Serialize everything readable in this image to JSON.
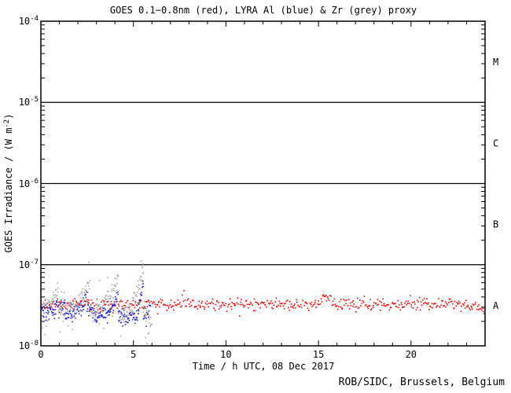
{
  "window": {
    "background": "#ffffff"
  },
  "chart": {
    "title": "GOES 0.1−0.8nm (red), LYRA Al (blue) & Zr (grey) proxy",
    "credit": "ROB/SIDC, Brussels, Belgium",
    "axes": {
      "x": {
        "title": "Time / h UTC, 08 Dec 2017",
        "min": 0,
        "max": 24,
        "major_tick_step": 5,
        "minor_tick_step": 1,
        "tick_labels": [
          "0",
          "5",
          "10",
          "15",
          "20"
        ]
      },
      "y": {
        "title_pre": "GOES Irradiance / (W m",
        "title_sup": "-2",
        "title_post": ")",
        "min_exp": -8,
        "max_exp": -4,
        "tick_labels": [
          {
            "base": "10",
            "exp": "-4"
          },
          {
            "base": "10",
            "exp": "-5"
          },
          {
            "base": "10",
            "exp": "-6"
          },
          {
            "base": "10",
            "exp": "-7"
          },
          {
            "base": "10",
            "exp": "-8"
          }
        ]
      }
    },
    "flare_classes": [
      {
        "label": "M",
        "mid_exp": -4.5
      },
      {
        "label": "C",
        "mid_exp": -5.5
      },
      {
        "label": "B",
        "mid_exp": -6.5
      },
      {
        "label": "A",
        "mid_exp": -7.5
      }
    ],
    "boundary_lines_exp": [
      -5,
      -6,
      -7
    ],
    "colors": {
      "goes_red": "#ff0000",
      "lyra_al_blue": "#2222cc",
      "lyra_zr_grey": "#a8a8a8",
      "frame": "#000000"
    }
  },
  "chart_data": {
    "type": "scatter",
    "title": "GOES 0.1−0.8nm (red), LYRA Al (blue) & Zr (grey) proxy",
    "xlabel": "Time / h UTC, 08 Dec 2017",
    "ylabel": "GOES Irradiance / (W m^-2)",
    "x_range_hours": [
      0,
      24
    ],
    "y_log10_range": [
      -8,
      -4
    ],
    "grid": "off",
    "legend": "encoded in title by colour",
    "series": [
      {
        "name": "GOES 0.1-0.8nm",
        "color": "#ff0000",
        "seed": 11,
        "step_h": 0.045,
        "sigma_dex": 0.035,
        "outlier_prob": 0.05,
        "outlier_mag_dex": 0.08,
        "segments_t0_t1_log0_log1": [
          [
            0.0,
            0.6,
            -7.51,
            -7.49
          ],
          [
            0.6,
            1.9,
            -7.48,
            -7.48
          ],
          [
            1.9,
            2.6,
            -7.45,
            -7.47
          ],
          [
            2.6,
            6.3,
            -7.48,
            -7.48
          ],
          [
            6.3,
            15.05,
            -7.49,
            -7.49
          ],
          [
            15.05,
            15.45,
            -7.47,
            -7.36
          ],
          [
            15.45,
            15.95,
            -7.4,
            -7.49
          ],
          [
            15.95,
            23.0,
            -7.49,
            -7.49
          ],
          [
            23.0,
            24.0,
            -7.5,
            -7.55
          ]
        ],
        "extra_points_t_log": []
      },
      {
        "name": "LYRA Al proxy",
        "color": "#2222cc",
        "seed": 22,
        "step_h": 0.022,
        "sigma_dex": 0.045,
        "outlier_prob": 0.05,
        "outlier_mag_dex": 0.1,
        "segments_t0_t1_log0_log1": [
          [
            0.0,
            0.35,
            -7.53,
            -7.53
          ],
          [
            0.35,
            0.8,
            -7.57,
            -7.56
          ],
          [
            0.8,
            1.3,
            -7.52,
            -7.53
          ],
          [
            1.3,
            1.8,
            -7.62,
            -7.6
          ],
          [
            1.8,
            2.3,
            -7.55,
            -7.54
          ],
          [
            2.3,
            2.5,
            -7.48,
            -7.36
          ],
          [
            2.5,
            2.95,
            -7.55,
            -7.6
          ],
          [
            2.95,
            3.6,
            -7.65,
            -7.62
          ],
          [
            3.6,
            3.95,
            -7.56,
            -7.55
          ],
          [
            3.95,
            4.18,
            -7.5,
            -7.36
          ],
          [
            4.18,
            4.55,
            -7.57,
            -7.6
          ],
          [
            4.55,
            5.3,
            -7.66,
            -7.62
          ],
          [
            5.3,
            5.55,
            -7.5,
            -7.22
          ],
          [
            5.55,
            5.92,
            -7.62,
            -7.55
          ]
        ],
        "extra_points_t_log": []
      },
      {
        "name": "LYRA Zr proxy",
        "color": "#a8a8a8",
        "seed": 33,
        "step_h": 0.022,
        "sigma_dex": 0.05,
        "outlier_prob": 0.07,
        "outlier_mag_dex": 0.3,
        "segments_t0_t1_log0_log1": [
          [
            0.0,
            0.5,
            -7.53,
            -7.51
          ],
          [
            0.5,
            0.95,
            -7.48,
            -7.27
          ],
          [
            0.95,
            1.25,
            -7.58,
            -7.63
          ],
          [
            1.25,
            2.0,
            -7.53,
            -7.51
          ],
          [
            2.0,
            2.65,
            -7.5,
            -7.22
          ],
          [
            2.65,
            3.0,
            -7.58,
            -7.62
          ],
          [
            3.0,
            3.35,
            -7.53,
            -7.52
          ],
          [
            3.35,
            4.2,
            -7.52,
            -7.17
          ],
          [
            4.2,
            4.55,
            -7.62,
            -7.66
          ],
          [
            4.55,
            4.95,
            -7.56,
            -7.54
          ],
          [
            4.95,
            5.55,
            -7.5,
            -7.05
          ],
          [
            5.55,
            6.0,
            -7.55,
            -7.75
          ]
        ],
        "extra_points_t_log": [
          [
            2.58,
            -6.97
          ],
          [
            5.42,
            -6.96
          ],
          [
            5.49,
            -7.01
          ],
          [
            0.08,
            -7.78
          ],
          [
            0.22,
            -7.86
          ],
          [
            1.02,
            -7.83
          ],
          [
            1.7,
            -7.8
          ],
          [
            4.32,
            -7.88
          ],
          [
            5.66,
            -7.9
          ],
          [
            5.83,
            -7.84
          ]
        ]
      }
    ],
    "class_boundaries": [
      {
        "class": "M",
        "lower_wm2": 1e-05
      },
      {
        "class": "C",
        "lower_wm2": 1e-06
      },
      {
        "class": "B",
        "lower_wm2": 1e-07
      },
      {
        "class": "A",
        "lower_wm2": 1e-08
      }
    ]
  }
}
